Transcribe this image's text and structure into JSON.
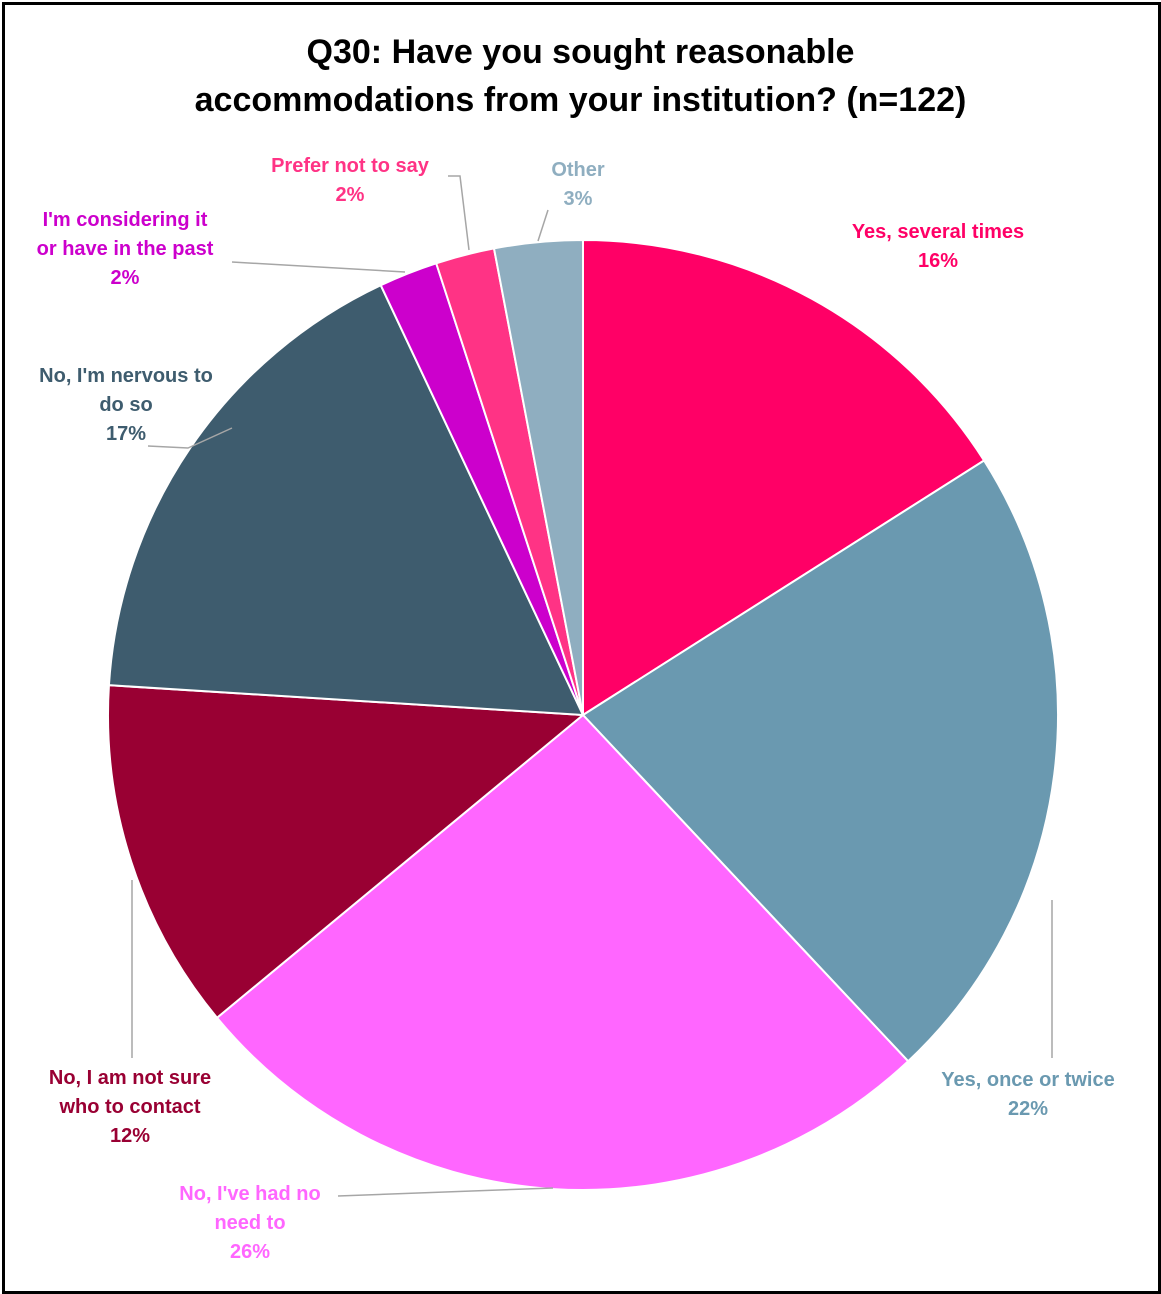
{
  "chart_data": {
    "type": "pie",
    "title_lines": [
      "Q30: Have you sought reasonable",
      "accommodations from your institution? (n=122)"
    ],
    "start": "top",
    "direction": "clockwise",
    "legend": "none",
    "slices": [
      {
        "label_lines": [
          "Yes, several times"
        ],
        "value": 16,
        "pct": "16%",
        "color": "#FF0066"
      },
      {
        "label_lines": [
          "Yes, once or twice"
        ],
        "value": 22,
        "pct": "22%",
        "color": "#6A99B0"
      },
      {
        "label_lines": [
          "No, I've had no",
          "need to"
        ],
        "value": 26,
        "pct": "26%",
        "color": "#FF66FF"
      },
      {
        "label_lines": [
          "No, I am not sure",
          "who to contact"
        ],
        "value": 12,
        "pct": "12%",
        "color": "#990033"
      },
      {
        "label_lines": [
          "No, I'm nervous to",
          "do so"
        ],
        "value": 17,
        "pct": "17%",
        "color": "#3E5C6E"
      },
      {
        "label_lines": [
          "I'm considering it",
          "or have in the past"
        ],
        "value": 2,
        "pct": "2%",
        "color": "#CC00CC"
      },
      {
        "label_lines": [
          "Prefer not to say"
        ],
        "value": 2,
        "pct": "2%",
        "color": "#FF3385"
      },
      {
        "label_lines": [
          "Other"
        ],
        "value": 3,
        "pct": "3%",
        "color": "#8FAEC0"
      }
    ]
  }
}
